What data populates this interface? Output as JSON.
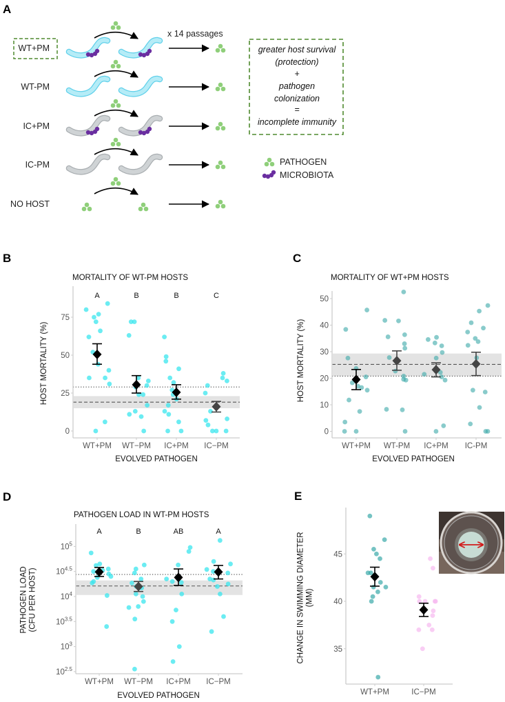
{
  "panel_a": {
    "label": "A",
    "passages": "x 14 passages",
    "rows": [
      {
        "label": "WT+PM",
        "host": "wt",
        "microbiota": true,
        "boxed": true
      },
      {
        "label": "WT-PM",
        "host": "wt",
        "microbiota": false,
        "boxed": false
      },
      {
        "label": "IC+PM",
        "host": "ic",
        "microbiota": true,
        "boxed": false
      },
      {
        "label": "IC-PM",
        "host": "ic",
        "microbiota": false,
        "boxed": false
      },
      {
        "label": "NO HOST",
        "host": "none",
        "microbiota": false,
        "boxed": false
      }
    ],
    "summary_lines": [
      "greater host survival",
      "(protection)",
      "+",
      "pathogen",
      "colonization",
      "=",
      "incomplete immunity"
    ],
    "legend": [
      {
        "label": "PATHOGEN",
        "kind": "pathogen"
      },
      {
        "label": "MICROBIOTA",
        "kind": "microbiota"
      }
    ],
    "colors": {
      "pathogen": "#8fcf7a",
      "microbiota": "#6a2ea0",
      "wt_host": "#b5ecf7",
      "wt_outline": "#5fd0ea",
      "ic_host": "#cfd3d5",
      "ic_outline": "#a9aeb1",
      "box": "#4f8a2e"
    }
  },
  "chart_data": [
    {
      "panel": "B",
      "type": "scatter",
      "title": "MORTALITY OF WT-PM HOSTS",
      "xlabel": "EVOLVED PATHOGEN",
      "ylabel": "HOST MORTALITY (%)",
      "categories": [
        "WT+PM",
        "WT−PM",
        "IC+PM",
        "IC−PM"
      ],
      "letters": [
        "A",
        "B",
        "B",
        "C"
      ],
      "yticks": [
        "0",
        "25",
        "50",
        "75"
      ],
      "ytick_values": [
        0,
        25,
        50,
        75
      ],
      "ylim": [
        -3,
        88
      ],
      "point_color": "#39e6ee",
      "point_opacity": 0.75,
      "points": [
        [
          84,
          80,
          77,
          75,
          72,
          66,
          62,
          52,
          44,
          40,
          35,
          35,
          31,
          6,
          0
        ],
        [
          72,
          72,
          63,
          35,
          33,
          30,
          29,
          24,
          24,
          17,
          13,
          11,
          9.5,
          0
        ],
        [
          62,
          49,
          46,
          41,
          35,
          32,
          27,
          24,
          21,
          17,
          13,
          11,
          6,
          0,
          0
        ],
        [
          38,
          35,
          33,
          30,
          25,
          16,
          13,
          8,
          7,
          4,
          0,
          0,
          0
        ]
      ],
      "means": [
        {
          "mean": 50.5,
          "lo": 44,
          "hi": 57.5,
          "color": "#000000"
        },
        {
          "mean": 30.5,
          "lo": 25,
          "hi": 36.5,
          "color": "#000000"
        },
        {
          "mean": 25.5,
          "lo": 21,
          "hi": 30.5,
          "color": "#000000"
        },
        {
          "mean": 16,
          "lo": 12.5,
          "hi": 19.5,
          "color": "#444444"
        }
      ],
      "reference": {
        "dotted": 29,
        "dashed": 19,
        "band": [
          15,
          23
        ]
      }
    },
    {
      "panel": "C",
      "type": "scatter",
      "title": "MORTALITY OF WT+PM HOSTS",
      "xlabel": "EVOLVED PATHOGEN",
      "ylabel": "HOST MORTALITY (%)",
      "categories": [
        "WT+PM",
        "WT-PM",
        "IC+PM",
        "IC-PM"
      ],
      "letters": [],
      "yticks": [
        "0",
        "10",
        "20",
        "30",
        "40",
        "50"
      ],
      "ytick_values": [
        0,
        10,
        20,
        30,
        40,
        50
      ],
      "ylim": [
        -2.5,
        52.5
      ],
      "point_color": "#3aa9a9",
      "point_opacity": 0.6,
      "points": [
        [
          45.7,
          38.4,
          27.6,
          23.7,
          20.5,
          18.3,
          17,
          16.5,
          15.5,
          11.8,
          7.5,
          3.5,
          0,
          0
        ],
        [
          52.5,
          41.8,
          41.6,
          36.4,
          35.6,
          33,
          31.3,
          27.8,
          22.7,
          20.8,
          19.6,
          19.3,
          8.3,
          8.1,
          0
        ],
        [
          35.4,
          34.6,
          33.3,
          32.2,
          29.7,
          27.6,
          22.2,
          21.5,
          20.5,
          19.3,
          2.1,
          0
        ],
        [
          47.4,
          45.3,
          40.9,
          38.9,
          37.4,
          35,
          33.8,
          32.4,
          27.7,
          15.5,
          14.8,
          9,
          2.8,
          0,
          0
        ]
      ],
      "means": [
        {
          "mean": 19.5,
          "lo": 15.7,
          "hi": 23.3,
          "color": "#000000"
        },
        {
          "mean": 26.6,
          "lo": 23,
          "hi": 30.3,
          "color": "#444444"
        },
        {
          "mean": 23.2,
          "lo": 20.5,
          "hi": 25.8,
          "color": "#444444"
        },
        {
          "mean": 25.4,
          "lo": 21,
          "hi": 29.8,
          "color": "#444444"
        }
      ],
      "reference": {
        "dotted": 20.8,
        "dashed": 25.2,
        "band": [
          20.8,
          29.3
        ]
      }
    },
    {
      "panel": "D",
      "type": "scatter",
      "title": "PATHOGEN LOAD IN WT-PM HOSTS",
      "xlabel": "EVOLVED PATHOGEN",
      "ylabel": [
        "PATHOGEN LOAD",
        "(CFU PER HOST)"
      ],
      "yscale": "log10",
      "categories": [
        "WT+PM",
        "WT−PM",
        "IC+PM",
        "IC−PM"
      ],
      "letters": [
        "A",
        "B",
        "AB",
        "A"
      ],
      "yticks": [
        {
          "base": "10",
          "exp": "2.5"
        },
        {
          "base": "10",
          "exp": "3"
        },
        {
          "base": "10",
          "exp": "3.5"
        },
        {
          "base": "10",
          "exp": "4"
        },
        {
          "base": "10",
          "exp": "4.5"
        },
        {
          "base": "10",
          "exp": "5"
        }
      ],
      "ytick_values": [
        2.5,
        3,
        3.5,
        4,
        4.5,
        5
      ],
      "ylim": [
        2.45,
        5.5
      ],
      "point_color": "#39e6ee",
      "point_opacity": 0.75,
      "points": [
        [
          4.87,
          4.65,
          4.62,
          4.55,
          4.52,
          4.5,
          4.45,
          4.4,
          4.38,
          4.3,
          4.27,
          4.02,
          3.4
        ],
        [
          4.63,
          4.55,
          4.47,
          4.35,
          4.27,
          4.2,
          4.17,
          4.05,
          4.0,
          3.9,
          3.8,
          3.78,
          3.55,
          2.55
        ],
        [
          4.98,
          4.9,
          4.63,
          4.35,
          4.3,
          4.28,
          4.05,
          3.73,
          3.5,
          3.0,
          2.7
        ],
        [
          5.12,
          4.7,
          4.65,
          4.54,
          4.5,
          4.47,
          4.35,
          4.33,
          4.25,
          4.2,
          4.05,
          3.6,
          3.3
        ]
      ],
      "means": [
        {
          "mean": 4.49,
          "lo": 4.4,
          "hi": 4.58,
          "color": "#000000"
        },
        {
          "mean": 4.2,
          "lo": 4.1,
          "hi": 4.3,
          "color": "#444444"
        },
        {
          "mean": 4.38,
          "lo": 4.22,
          "hi": 4.55,
          "color": "#000000"
        },
        {
          "mean": 4.49,
          "lo": 4.35,
          "hi": 4.62,
          "color": "#000000"
        }
      ],
      "reference": {
        "dotted": 4.44,
        "dashed": 4.21,
        "band": [
          4.03,
          4.32
        ]
      }
    },
    {
      "panel": "E",
      "type": "scatter",
      "title": "",
      "xlabel": "",
      "ylabel": [
        "CHANGE IN SWIMMING DIAMETER",
        "(MM)"
      ],
      "categories": [
        "WT+PM",
        "IC−PM"
      ],
      "letters": [],
      "yticks": [
        "35",
        "40",
        "45"
      ],
      "ytick_values": [
        35,
        40,
        45
      ],
      "ylim": [
        31.5,
        50
      ],
      "point_colors": [
        "#3aa9a9",
        "#f7b8ef"
      ],
      "point_opacity": 0.7,
      "points": [
        [
          49,
          46.5,
          45.5,
          45,
          44.5,
          43,
          43,
          42,
          41.5,
          41.5,
          41,
          40.5,
          40,
          32
        ],
        [
          44.5,
          43.5,
          40.5,
          40,
          40,
          40,
          40,
          39,
          38.5,
          37.5,
          37,
          37,
          35
        ]
      ],
      "means": [
        {
          "mean": 42.6,
          "lo": 41.6,
          "hi": 43.6,
          "color": "#000000"
        },
        {
          "mean": 39.1,
          "lo": 38.4,
          "hi": 39.8,
          "color": "#000000"
        }
      ]
    }
  ],
  "panel_labels": {
    "b": "B",
    "c": "C",
    "d": "D",
    "e": "E"
  },
  "inset_colors": {
    "plate_bg": "#4a3a30",
    "colony": "#cfe8e0",
    "arrow": "#d11a1a"
  }
}
